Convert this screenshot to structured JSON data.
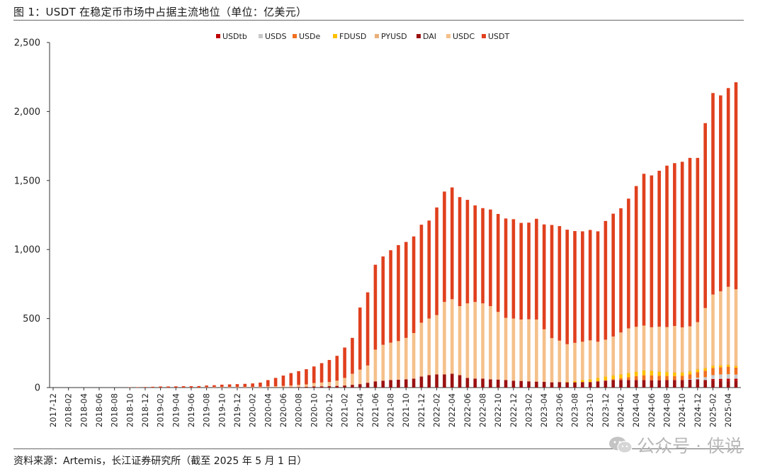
{
  "figure": {
    "title": "图 1：USDT 在稳定币市场中占据主流地位（单位：亿美元）",
    "source": "资料来源：Artemis，长江证券研究所（截至 2025 年 5 月 1 日）",
    "watermark": "公众号 · 侠说"
  },
  "chart_data": {
    "type": "bar",
    "stacked": true,
    "ylim": [
      0,
      2500
    ],
    "yticks": [
      "0",
      "500",
      "1,000",
      "1,500",
      "2,000",
      "2,500"
    ],
    "ytick_values": [
      0,
      500,
      1000,
      1500,
      2000,
      2500
    ],
    "legend_position": "top",
    "categories": [
      "2017-12",
      "2018-01",
      "2018-02",
      "2018-03",
      "2018-04",
      "2018-05",
      "2018-06",
      "2018-07",
      "2018-08",
      "2018-09",
      "2018-10",
      "2018-11",
      "2018-12",
      "2019-01",
      "2019-02",
      "2019-03",
      "2019-04",
      "2019-05",
      "2019-06",
      "2019-07",
      "2019-08",
      "2019-09",
      "2019-10",
      "2019-11",
      "2019-12",
      "2020-01",
      "2020-02",
      "2020-03",
      "2020-04",
      "2020-05",
      "2020-06",
      "2020-07",
      "2020-08",
      "2020-09",
      "2020-10",
      "2020-11",
      "2020-12",
      "2021-01",
      "2021-02",
      "2021-03",
      "2021-04",
      "2021-05",
      "2021-06",
      "2021-07",
      "2021-08",
      "2021-09",
      "2021-10",
      "2021-11",
      "2021-12",
      "2022-01",
      "2022-02",
      "2022-03",
      "2022-04",
      "2022-05",
      "2022-06",
      "2022-07",
      "2022-08",
      "2022-09",
      "2022-10",
      "2022-11",
      "2022-12",
      "2023-01",
      "2023-02",
      "2023-03",
      "2023-04",
      "2023-05",
      "2023-06",
      "2023-07",
      "2023-08",
      "2023-09",
      "2023-10",
      "2023-11",
      "2023-12",
      "2024-01",
      "2024-02",
      "2024-03",
      "2024-04",
      "2024-05",
      "2024-06",
      "2024-07",
      "2024-08",
      "2024-09",
      "2024-10",
      "2024-11",
      "2024-12",
      "2025-01",
      "2025-02",
      "2025-03",
      "2025-04",
      "2025-05"
    ],
    "tick_labels": [
      "2017-12",
      "2018-02",
      "2018-04",
      "2018-06",
      "2018-08",
      "2018-10",
      "2018-12",
      "2019-02",
      "2019-04",
      "2019-06",
      "2019-08",
      "2019-10",
      "2019-12",
      "2020-02",
      "2020-04",
      "2020-06",
      "2020-08",
      "2020-10",
      "2020-12",
      "2021-02",
      "2021-04",
      "2021-06",
      "2021-08",
      "2021-10",
      "2021-12",
      "2022-02",
      "2022-04",
      "2022-06",
      "2022-08",
      "2022-10",
      "2022-12",
      "2023-02",
      "2023-04",
      "2023-06",
      "2023-08",
      "2023-10",
      "2023-12",
      "2024-02",
      "2024-04",
      "2024-06",
      "2024-08",
      "2024-10",
      "2024-12",
      "2025-02",
      "2025-04"
    ],
    "series": [
      {
        "name": "USDtb",
        "color": "#c00000",
        "values": [
          0,
          0,
          0,
          0,
          0,
          0,
          0,
          0,
          0,
          0,
          0,
          0,
          0,
          0,
          0,
          0,
          0,
          0,
          0,
          0,
          0,
          0,
          0,
          0,
          0,
          0,
          0,
          0,
          0,
          0,
          0,
          0,
          0,
          0,
          0,
          0,
          0,
          0,
          0,
          0,
          0,
          0,
          0,
          0,
          0,
          0,
          0,
          0,
          0,
          0,
          0,
          0,
          0,
          0,
          0,
          0,
          0,
          0,
          0,
          0,
          0,
          0,
          0,
          0,
          0,
          0,
          0,
          0,
          0,
          0,
          0,
          0,
          0,
          0,
          0,
          0,
          0,
          0,
          0,
          0,
          0,
          0,
          0,
          0,
          0,
          0,
          10,
          13,
          14,
          14
        ]
      },
      {
        "name": "USDS",
        "color": "#c8c8c8",
        "values": [
          0,
          0,
          0,
          0,
          0,
          0,
          0,
          0,
          0,
          0,
          0,
          0,
          0,
          0,
          0,
          0,
          0,
          0,
          0,
          0,
          0,
          0,
          0,
          0,
          0,
          0,
          0,
          0,
          0,
          0,
          0,
          0,
          0,
          0,
          0,
          0,
          0,
          0,
          0,
          0,
          0,
          0,
          0,
          0,
          0,
          0,
          0,
          0,
          0,
          0,
          0,
          0,
          0,
          0,
          0,
          0,
          0,
          0,
          0,
          0,
          0,
          0,
          0,
          0,
          0,
          0,
          0,
          0,
          0,
          0,
          0,
          0,
          0,
          0,
          0,
          0,
          0,
          0,
          0,
          0,
          0,
          0,
          0,
          4,
          12,
          20,
          28,
          32,
          33,
          30
        ]
      },
      {
        "name": "USDe",
        "color": "#f07020",
        "values": [
          0,
          0,
          0,
          0,
          0,
          0,
          0,
          0,
          0,
          0,
          0,
          0,
          0,
          0,
          0,
          0,
          0,
          0,
          0,
          0,
          0,
          0,
          0,
          0,
          0,
          0,
          0,
          0,
          0,
          0,
          0,
          0,
          0,
          0,
          0,
          0,
          0,
          0,
          0,
          0,
          0,
          0,
          0,
          0,
          0,
          0,
          0,
          0,
          0,
          0,
          0,
          0,
          0,
          0,
          0,
          0,
          0,
          0,
          0,
          0,
          0,
          0,
          0,
          0,
          0,
          0,
          0,
          0,
          0,
          0,
          0,
          0,
          3,
          6,
          12,
          20,
          28,
          34,
          35,
          32,
          30,
          28,
          30,
          33,
          40,
          47,
          52,
          52,
          54,
          50
        ]
      },
      {
        "name": "FDUSD",
        "color": "#ffc000",
        "values": [
          0,
          0,
          0,
          0,
          0,
          0,
          0,
          0,
          0,
          0,
          0,
          0,
          0,
          0,
          0,
          0,
          0,
          0,
          0,
          0,
          0,
          0,
          0,
          0,
          0,
          0,
          0,
          0,
          0,
          0,
          0,
          0,
          0,
          0,
          0,
          0,
          0,
          0,
          0,
          0,
          0,
          0,
          0,
          0,
          0,
          0,
          0,
          0,
          0,
          0,
          0,
          0,
          0,
          0,
          0,
          0,
          0,
          0,
          0,
          0,
          0,
          0,
          0,
          0,
          0,
          0,
          0,
          5,
          10,
          15,
          20,
          25,
          26,
          26,
          28,
          30,
          32,
          35,
          33,
          30,
          28,
          26,
          24,
          22,
          20,
          18,
          16,
          14,
          13,
          12
        ]
      },
      {
        "name": "PYUSD",
        "color": "#e8b07a",
        "values": [
          0,
          0,
          0,
          0,
          0,
          0,
          0,
          0,
          0,
          0,
          0,
          0,
          0,
          0,
          0,
          0,
          0,
          0,
          0,
          0,
          0,
          0,
          0,
          0,
          0,
          0,
          0,
          0,
          0,
          0,
          0,
          0,
          0,
          0,
          0,
          0,
          0,
          0,
          0,
          0,
          0,
          0,
          0,
          0,
          0,
          0,
          0,
          0,
          0,
          0,
          0,
          0,
          0,
          0,
          0,
          0,
          0,
          0,
          0,
          0,
          0,
          0,
          0,
          0,
          0,
          0,
          0,
          1,
          1,
          2,
          2,
          2,
          3,
          3,
          4,
          4,
          5,
          5,
          6,
          6,
          6,
          7,
          7,
          7,
          7,
          6,
          6,
          6,
          6,
          6
        ]
      },
      {
        "name": "DAI",
        "color": "#9b1111",
        "values": [
          0,
          0,
          0,
          0,
          0,
          0,
          0,
          0,
          0,
          0,
          0,
          0,
          0,
          0,
          0,
          0,
          0,
          0,
          0,
          0,
          1,
          1,
          1,
          1,
          1,
          1,
          1,
          1,
          2,
          2,
          2,
          3,
          4,
          5,
          8,
          9,
          10,
          12,
          15,
          20,
          25,
          35,
          45,
          50,
          55,
          57,
          60,
          65,
          80,
          90,
          95,
          95,
          100,
          90,
          70,
          65,
          65,
          60,
          58,
          55,
          50,
          48,
          45,
          43,
          42,
          38,
          40,
          38,
          38,
          40,
          40,
          45,
          50,
          55,
          55,
          55,
          55,
          55,
          53,
          53,
          54,
          55,
          55,
          58,
          60,
          55,
          52,
          50,
          50,
          50
        ]
      },
      {
        "name": "USDC",
        "color": "#f5c08a",
        "values": [
          0,
          0,
          0,
          0,
          0,
          0,
          0,
          0,
          0,
          0,
          0,
          0,
          0,
          0,
          0,
          0,
          0,
          0,
          0,
          0,
          2,
          3,
          4,
          4,
          4,
          4,
          4,
          5,
          7,
          8,
          10,
          12,
          15,
          18,
          25,
          28,
          30,
          38,
          55,
          80,
          105,
          125,
          230,
          260,
          270,
          280,
          300,
          330,
          390,
          410,
          430,
          525,
          540,
          500,
          540,
          555,
          545,
          530,
          490,
          450,
          450,
          445,
          450,
          450,
          380,
          320,
          300,
          270,
          275,
          275,
          280,
          260,
          265,
          280,
          300,
          320,
          320,
          320,
          310,
          320,
          320,
          330,
          320,
          320,
          335,
          430,
          510,
          530,
          560,
          550
        ]
      },
      {
        "name": "USDT",
        "color": "#e0401e",
        "values": [
          0,
          0,
          0,
          0,
          0,
          0,
          0,
          0,
          0,
          0,
          2,
          3,
          4,
          6,
          8,
          8,
          9,
          10,
          10,
          11,
          12,
          13,
          16,
          18,
          20,
          22,
          25,
          30,
          45,
          60,
          75,
          90,
          100,
          110,
          120,
          140,
          160,
          180,
          220,
          260,
          450,
          530,
          615,
          640,
          670,
          695,
          695,
          700,
          710,
          710,
          780,
          800,
          810,
          790,
          750,
          700,
          690,
          700,
          710,
          720,
          720,
          700,
          700,
          730,
          760,
          820,
          830,
          830,
          810,
          800,
          800,
          800,
          860,
          890,
          900,
          940,
          1020,
          1100,
          1100,
          1130,
          1170,
          1180,
          1200,
          1220,
          1190,
          1340,
          1460,
          1420,
          1440,
          1500
        ]
      }
    ]
  }
}
